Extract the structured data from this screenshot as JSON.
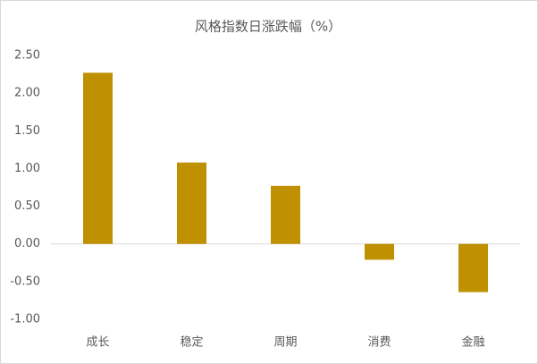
{
  "chart_data": {
    "type": "bar",
    "title": "风格指数日涨跌幅（%）",
    "categories": [
      "成长",
      "稳定",
      "周期",
      "消费",
      "金融"
    ],
    "values": [
      2.27,
      1.08,
      0.77,
      -0.21,
      -0.64
    ],
    "color": "#bf9000",
    "ylim": [
      -1,
      2.5
    ],
    "yticks": [
      {
        "value": 2.5,
        "label": "2.50"
      },
      {
        "value": 2,
        "label": "2.00"
      },
      {
        "value": 1.5,
        "label": "1.50"
      },
      {
        "value": 1,
        "label": "1.00"
      },
      {
        "value": 0.5,
        "label": "0.50"
      },
      {
        "value": 0,
        "label": "0.00"
      },
      {
        "value": -0.5,
        "label": "-0.50"
      },
      {
        "value": -1,
        "label": "-1.00"
      }
    ],
    "grid": false
  }
}
